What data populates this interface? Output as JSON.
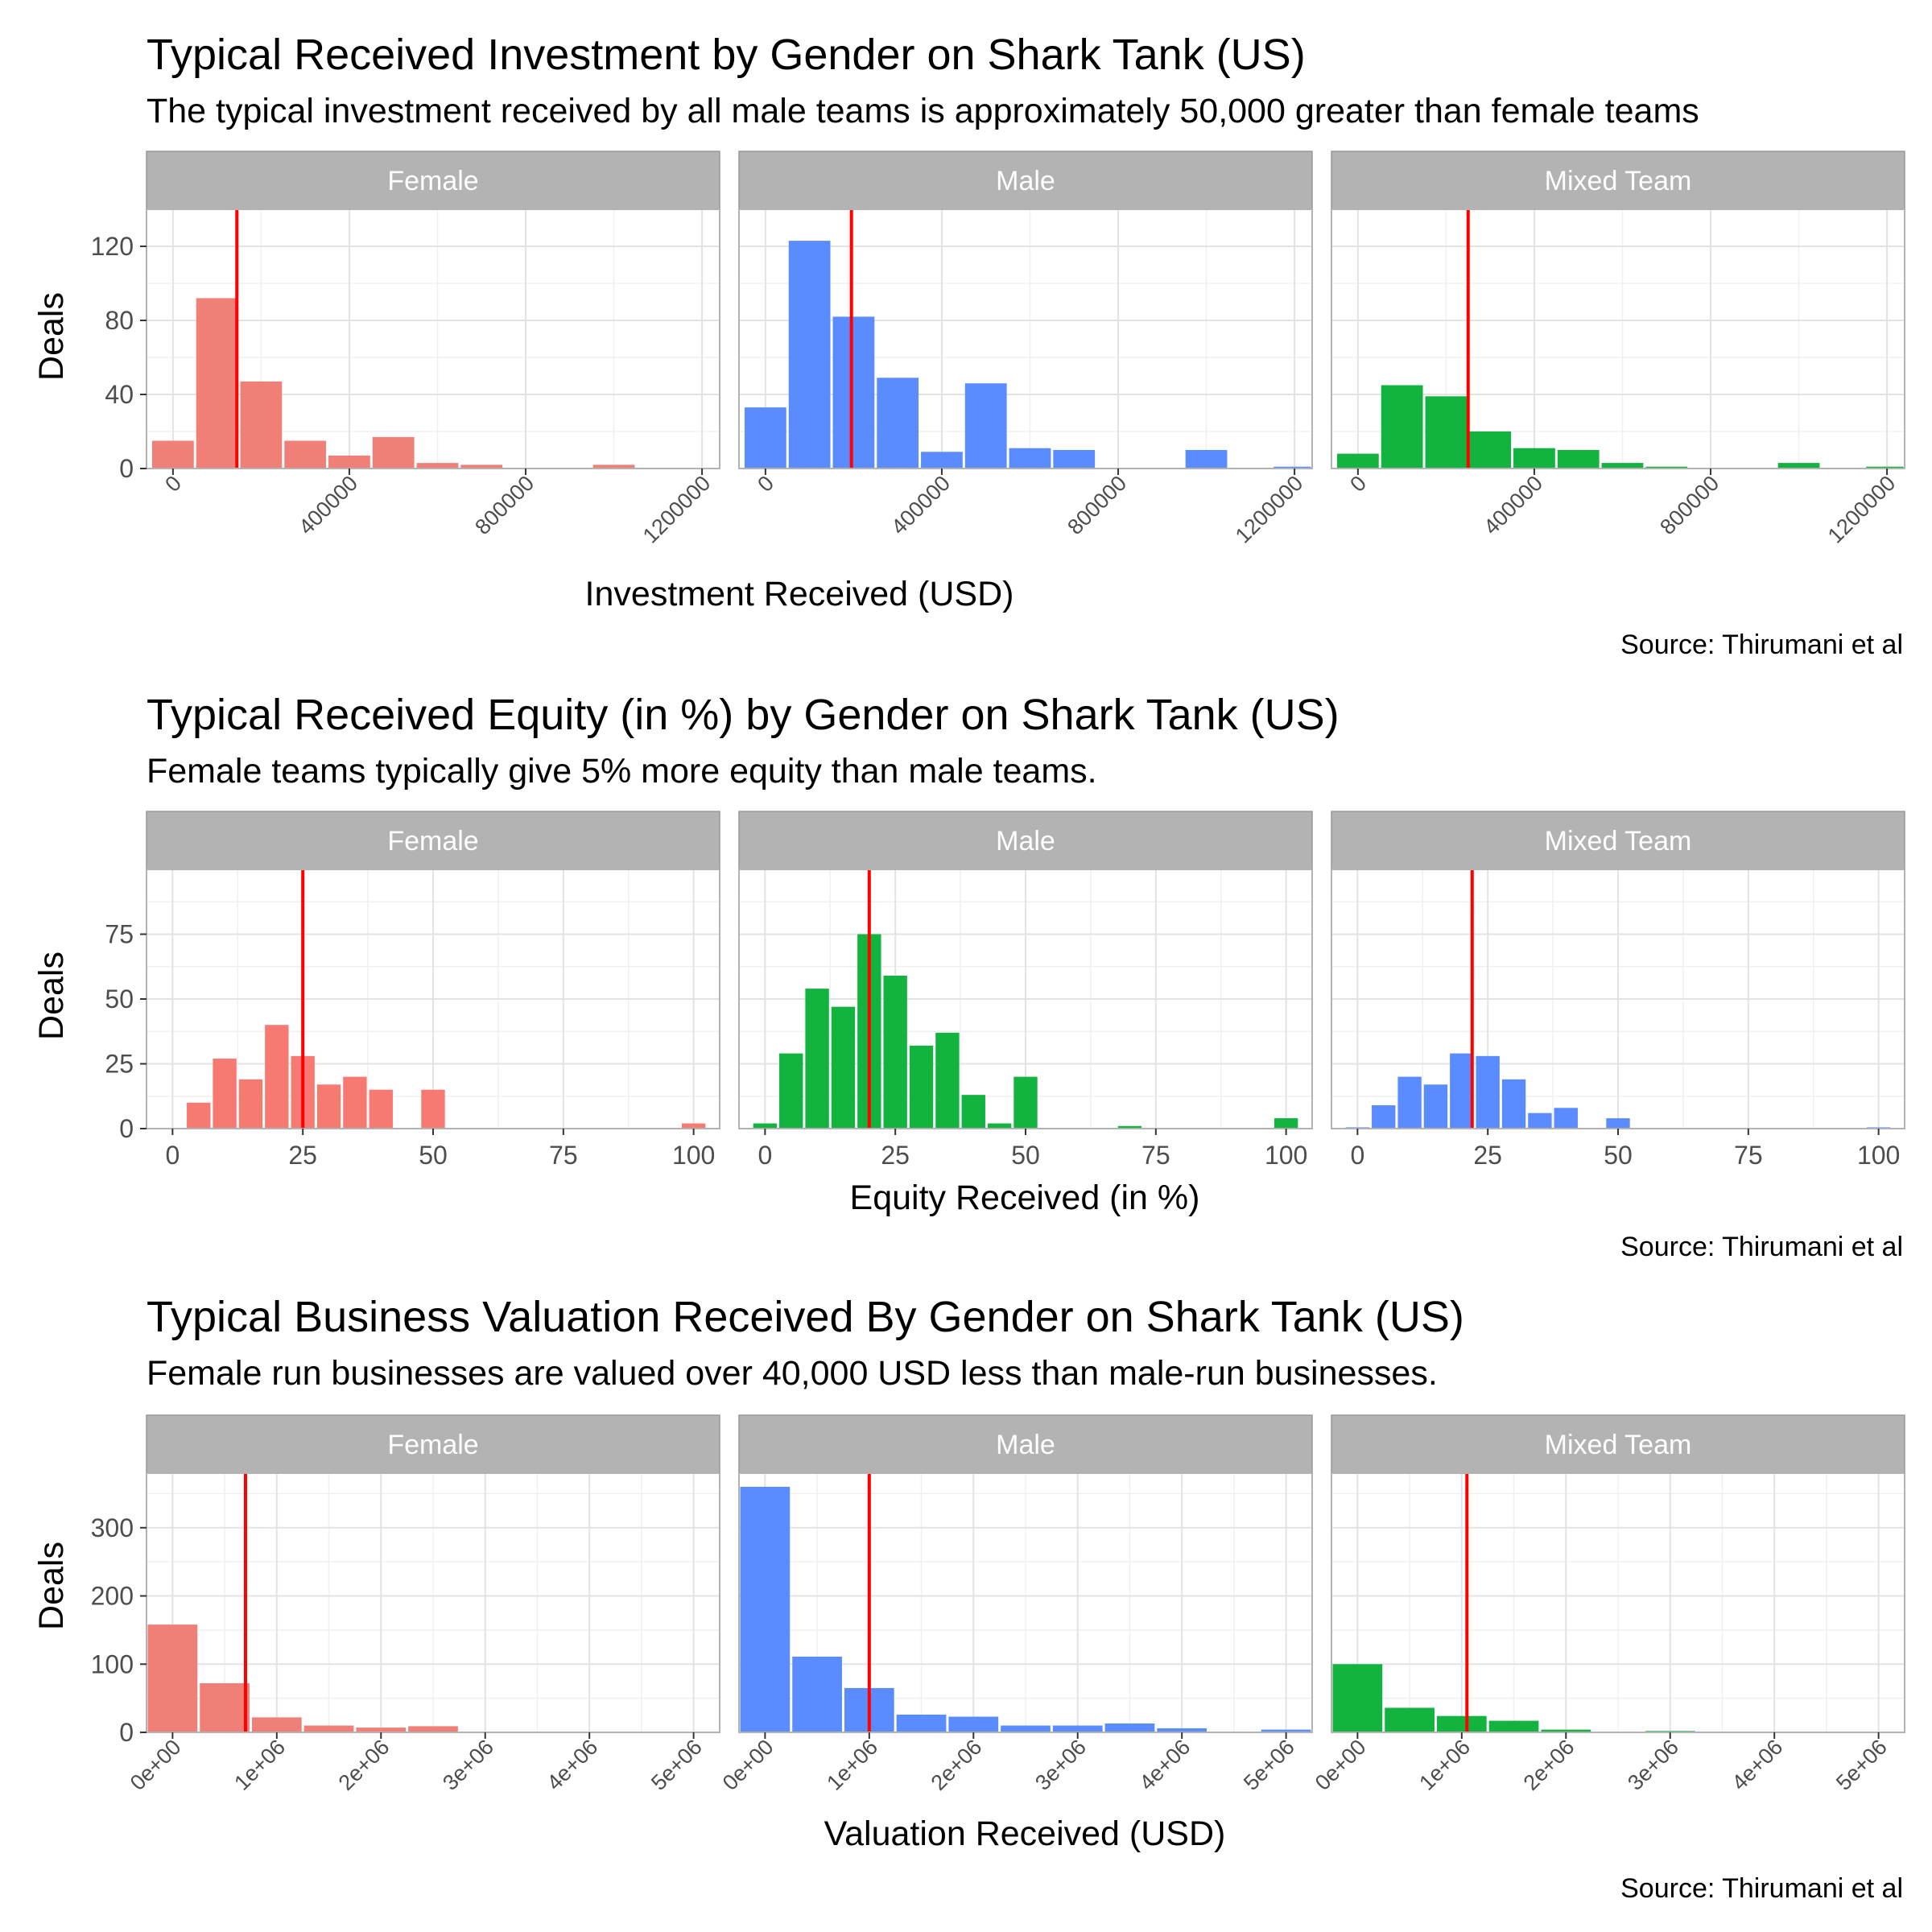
{
  "chart_data": [
    {
      "type": "bar",
      "title": "Typical Received Investment by Gender on Shark Tank (US)",
      "subtitle": "The typical investment received by all male teams is approximately 50,000 greater than female teams",
      "xlabel": "Investment Received (USD)",
      "ylabel": "Deals",
      "caption": "Source: Thirumani et al",
      "xlim": [
        -60000,
        1240000
      ],
      "ylim": [
        0,
        140
      ],
      "x_ticks": [
        0,
        400000,
        800000,
        1200000
      ],
      "x_tick_labels": [
        "0",
        "400000",
        "800000",
        "1200000"
      ],
      "y_ticks": [
        0,
        40,
        80,
        120
      ],
      "y_tick_labels": [
        "0",
        "40",
        "80",
        "120"
      ],
      "x_tick_rotated": true,
      "bin_width": 100000,
      "grid": true,
      "legend": "none",
      "facets": [
        {
          "label": "Female",
          "color": "#f08077",
          "bin_starts": [
            -50000,
            50000,
            150000,
            250000,
            350000,
            450000,
            550000,
            650000,
            950000
          ],
          "counts": [
            15,
            92,
            47,
            15,
            7,
            17,
            3,
            2,
            2
          ],
          "median_line": 145000
        },
        {
          "label": "Male",
          "color": "#5a8cff",
          "bin_starts": [
            -50000,
            50000,
            150000,
            250000,
            350000,
            450000,
            550000,
            650000,
            950000,
            1150000
          ],
          "counts": [
            33,
            123,
            82,
            49,
            9,
            46,
            11,
            10,
            10,
            1
          ],
          "median_line": 195000
        },
        {
          "label": "Mixed Team",
          "color": "#12b33f",
          "bin_starts": [
            -50000,
            50000,
            150000,
            250000,
            350000,
            450000,
            550000,
            650000,
            950000,
            1150000
          ],
          "counts": [
            8,
            45,
            39,
            20,
            11,
            10,
            3,
            1,
            3,
            1
          ],
          "median_line": 250000
        }
      ],
      "reference_line_color": "#ff0000"
    },
    {
      "type": "bar",
      "title": "Typical Received Equity (in %) by Gender on Shark Tank (US)",
      "subtitle": "Female teams typically give 5% more equity than male teams.",
      "xlabel": "Equity Received (in %)",
      "ylabel": "Deals",
      "caption": "Source: Thirumani et al",
      "xlim": [
        -5,
        105
      ],
      "ylim": [
        0,
        100
      ],
      "x_ticks": [
        0,
        25,
        50,
        75,
        100
      ],
      "x_tick_labels": [
        "0",
        "25",
        "50",
        "75",
        "100"
      ],
      "y_ticks": [
        0,
        25,
        50,
        75
      ],
      "y_tick_labels": [
        "0",
        "25",
        "50",
        "75"
      ],
      "x_tick_rotated": false,
      "bin_width": 5,
      "grid": true,
      "legend": "none",
      "facets": [
        {
          "label": "Female",
          "color": "#f77a72",
          "bin_starts": [
            2.5,
            7.5,
            12.5,
            17.5,
            22.5,
            27.5,
            32.5,
            37.5,
            47.5,
            97.5
          ],
          "counts": [
            10,
            27,
            19,
            40,
            28,
            17,
            20,
            15,
            15,
            2
          ],
          "median_line": 25
        },
        {
          "label": "Male",
          "color": "#12b33f",
          "bin_starts": [
            -2.5,
            2.5,
            7.5,
            12.5,
            17.5,
            22.5,
            27.5,
            32.5,
            37.5,
            42.5,
            47.5,
            67.5,
            97.5
          ],
          "counts": [
            2,
            29,
            54,
            47,
            75,
            59,
            32,
            37,
            13,
            2,
            20,
            1,
            4
          ],
          "median_line": 20
        },
        {
          "label": "Mixed Team",
          "color": "#5a8cff",
          "bin_starts": [
            -2.5,
            2.5,
            7.5,
            12.5,
            17.5,
            22.5,
            27.5,
            32.5,
            37.5,
            47.5,
            97.5
          ],
          "counts": [
            0.5,
            9,
            20,
            17,
            29,
            28,
            19,
            6,
            8,
            4,
            0.5
          ],
          "median_line": 22
        }
      ],
      "reference_line_color": "#ff0000"
    },
    {
      "type": "bar",
      "title": "Typical Business Valuation Received By Gender on Shark Tank (US)",
      "subtitle": "Female run businesses are valued over 40,000 USD less than male-run businesses.",
      "xlabel": "Valuation Received (USD)",
      "ylabel": "Deals",
      "caption": "Source: Thirumani et al",
      "xlim": [
        -250000,
        5250000
      ],
      "ylim": [
        0,
        380
      ],
      "x_ticks": [
        0,
        1000000,
        2000000,
        3000000,
        4000000,
        5000000
      ],
      "x_tick_labels": [
        "0e+00",
        "1e+06",
        "2e+06",
        "3e+06",
        "4e+06",
        "5e+06"
      ],
      "y_ticks": [
        0,
        100,
        200,
        300
      ],
      "y_tick_labels": [
        "0",
        "100",
        "200",
        "300"
      ],
      "x_tick_rotated": true,
      "bin_width": 500000,
      "grid": true,
      "legend": "none",
      "facets": [
        {
          "label": "Female",
          "color": "#f08077",
          "bin_starts": [
            -250000,
            250000,
            750000,
            1250000,
            1750000,
            2250000
          ],
          "counts": [
            158,
            72,
            22,
            10,
            7,
            9
          ],
          "median_line": 700000
        },
        {
          "label": "Male",
          "color": "#5a8cff",
          "bin_starts": [
            -250000,
            250000,
            750000,
            1250000,
            1750000,
            2250000,
            2750000,
            3250000,
            3750000,
            4750000
          ],
          "counts": [
            360,
            111,
            65,
            26,
            23,
            10,
            10,
            13,
            6,
            4
          ],
          "median_line": 1000000
        },
        {
          "label": "Mixed Team",
          "color": "#12b33f",
          "bin_starts": [
            -250000,
            250000,
            750000,
            1250000,
            1750000,
            2750000
          ],
          "counts": [
            100,
            36,
            24,
            17,
            4,
            2
          ],
          "median_line": 1050000
        }
      ],
      "reference_line_color": "#ff0000"
    }
  ]
}
